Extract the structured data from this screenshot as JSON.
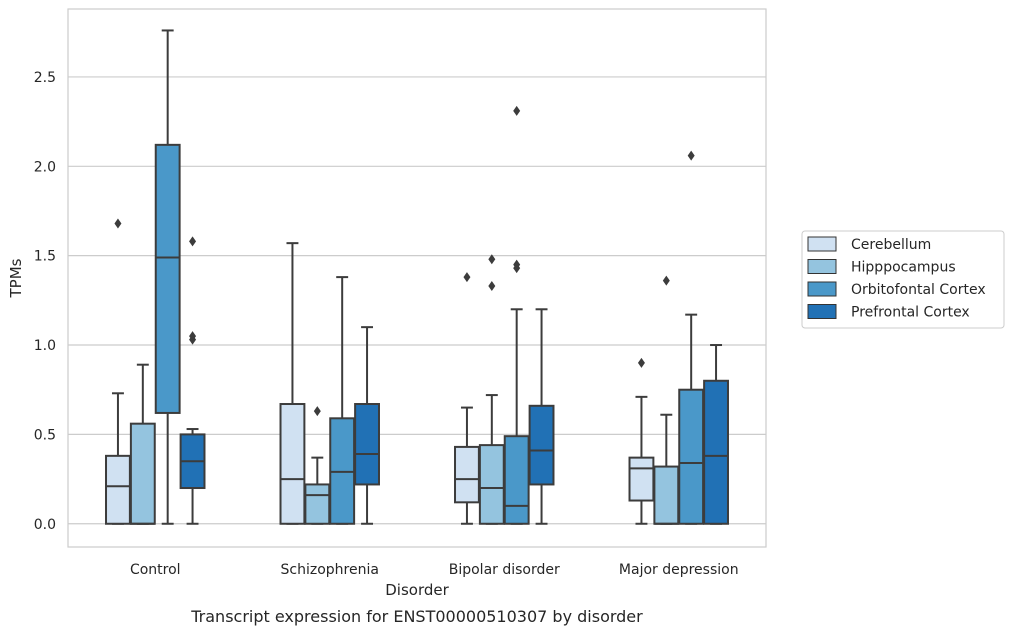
{
  "chart_data": {
    "type": "box",
    "caption": "Transcript expression for ENST00000510307 by disorder",
    "xlabel": "Disorder",
    "ylabel": "TPMs",
    "ylim": [
      -0.13,
      2.88
    ],
    "yticks": [
      0.0,
      0.5,
      1.0,
      1.5,
      2.0,
      2.5
    ],
    "ytick_labels": [
      "0.0",
      "0.5",
      "1.0",
      "1.5",
      "2.0",
      "2.5"
    ],
    "grid": "horizontal",
    "legend_position": "right",
    "categories": [
      "Control",
      "Schizophrenia",
      "Bipolar disorder",
      "Major depression"
    ],
    "series": [
      {
        "name": "Cerebellum",
        "color": "#d0e1f2",
        "boxes": [
          {
            "whislo": 0.0,
            "q1": 0.0,
            "med": 0.21,
            "q3": 0.38,
            "whishi": 0.73,
            "fliers": [
              1.68
            ]
          },
          {
            "whislo": 0.0,
            "q1": 0.0,
            "med": 0.25,
            "q3": 0.67,
            "whishi": 1.57,
            "fliers": []
          },
          {
            "whislo": 0.0,
            "q1": 0.12,
            "med": 0.25,
            "q3": 0.43,
            "whishi": 0.65,
            "fliers": [
              1.38
            ]
          },
          {
            "whislo": 0.0,
            "q1": 0.13,
            "med": 0.31,
            "q3": 0.37,
            "whishi": 0.71,
            "fliers": [
              0.9
            ]
          }
        ]
      },
      {
        "name": "Hipppocampus",
        "color": "#94c4df",
        "boxes": [
          {
            "whislo": 0.0,
            "q1": 0.0,
            "med": 0.0,
            "q3": 0.56,
            "whishi": 0.89,
            "fliers": []
          },
          {
            "whislo": 0.0,
            "q1": 0.0,
            "med": 0.16,
            "q3": 0.22,
            "whishi": 0.37,
            "fliers": [
              0.63
            ]
          },
          {
            "whislo": 0.0,
            "q1": 0.0,
            "med": 0.2,
            "q3": 0.44,
            "whishi": 0.72,
            "fliers": [
              1.33,
              1.48
            ]
          },
          {
            "whislo": 0.0,
            "q1": 0.0,
            "med": 0.0,
            "q3": 0.32,
            "whishi": 0.61,
            "fliers": [
              1.36
            ]
          }
        ]
      },
      {
        "name": "Orbitofontal Cortex",
        "color": "#4a98c9",
        "boxes": [
          {
            "whislo": 0.0,
            "q1": 0.62,
            "med": 1.49,
            "q3": 2.12,
            "whishi": 2.76,
            "fliers": []
          },
          {
            "whislo": 0.0,
            "q1": 0.0,
            "med": 0.29,
            "q3": 0.59,
            "whishi": 1.38,
            "fliers": []
          },
          {
            "whislo": 0.0,
            "q1": 0.0,
            "med": 0.1,
            "q3": 0.49,
            "whishi": 1.2,
            "fliers": [
              1.43,
              1.45,
              2.31
            ]
          },
          {
            "whislo": 0.0,
            "q1": 0.0,
            "med": 0.34,
            "q3": 0.75,
            "whishi": 1.17,
            "fliers": [
              2.06
            ]
          }
        ]
      },
      {
        "name": "Prefrontal Cortex",
        "color": "#2171b5",
        "boxes": [
          {
            "whislo": 0.0,
            "q1": 0.2,
            "med": 0.35,
            "q3": 0.5,
            "whishi": 0.53,
            "fliers": [
              1.03,
              1.05,
              1.58
            ]
          },
          {
            "whislo": 0.0,
            "q1": 0.22,
            "med": 0.39,
            "q3": 0.67,
            "whishi": 1.1,
            "fliers": []
          },
          {
            "whislo": 0.0,
            "q1": 0.22,
            "med": 0.41,
            "q3": 0.66,
            "whishi": 1.2,
            "fliers": []
          },
          {
            "whislo": 0.0,
            "q1": 0.0,
            "med": 0.38,
            "q3": 0.8,
            "whishi": 1.0,
            "fliers": []
          }
        ]
      }
    ]
  }
}
